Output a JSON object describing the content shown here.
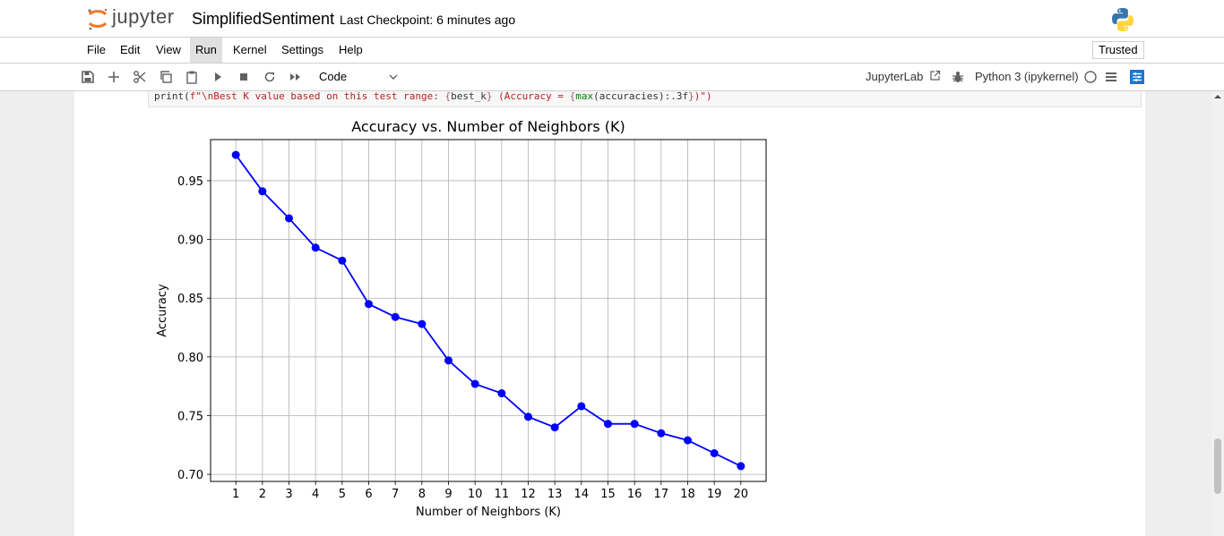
{
  "header": {
    "logo_text": "jupyter",
    "notebook_name": "SimplifiedSentiment",
    "checkpoint": "Last Checkpoint: 6 minutes ago"
  },
  "menu": {
    "items": [
      "File",
      "Edit",
      "View",
      "Run",
      "Kernel",
      "Settings",
      "Help"
    ],
    "active": "Run",
    "trusted": "Trusted"
  },
  "toolbar": {
    "cell_type": "Code",
    "jupyterlab_link": "JupyterLab",
    "kernel": "Python 3 (ipykernel)"
  },
  "cell": {
    "code_parts": [
      {
        "text": "print(",
        "style": "plain"
      },
      {
        "text": "f\"\\nBest K value based on this test range: ",
        "style": "str"
      },
      {
        "text": "{",
        "style": "brace"
      },
      {
        "text": "best_k",
        "style": "plain"
      },
      {
        "text": "}",
        "style": "brace"
      },
      {
        "text": " (Accuracy = ",
        "style": "str"
      },
      {
        "text": "{",
        "style": "brace"
      },
      {
        "text": "max",
        "style": "kw"
      },
      {
        "text": "(accuracies):.3f",
        "style": "plain"
      },
      {
        "text": "}",
        "style": "brace"
      },
      {
        "text": ")\")",
        "style": "str"
      }
    ]
  },
  "chart_data": {
    "type": "line",
    "title": "Accuracy vs. Number of Neighbors (K)",
    "xlabel": "Number of Neighbors (K)",
    "ylabel": "Accuracy",
    "x": [
      1,
      2,
      3,
      4,
      5,
      6,
      7,
      8,
      9,
      10,
      11,
      12,
      13,
      14,
      15,
      16,
      17,
      18,
      19,
      20
    ],
    "y": [
      0.972,
      0.941,
      0.918,
      0.893,
      0.882,
      0.845,
      0.834,
      0.828,
      0.797,
      0.777,
      0.769,
      0.749,
      0.74,
      0.758,
      0.743,
      0.743,
      0.735,
      0.729,
      0.718,
      0.707
    ],
    "xlim": [
      0.05,
      20.95
    ],
    "ylim": [
      0.694,
      0.985
    ],
    "yticks": [
      0.7,
      0.75,
      0.8,
      0.85,
      0.9,
      0.95
    ],
    "ytick_labels": [
      "0.70",
      "0.75",
      "0.80",
      "0.85",
      "0.90",
      "0.95"
    ],
    "grid": true,
    "marker": "circle",
    "color": "#0000ff"
  },
  "colors": {
    "jupyter_orange": "#f37726",
    "series_blue": "#0000ff",
    "toolbar_blue": "#1976d2"
  }
}
